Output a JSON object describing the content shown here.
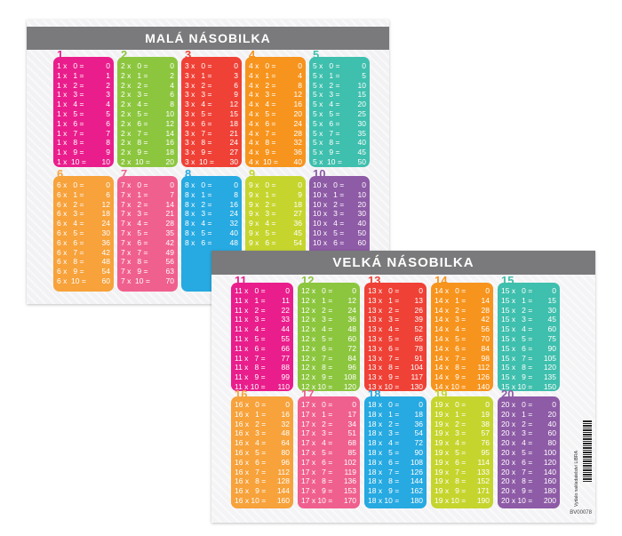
{
  "colors": [
    "#e91e8c",
    "#8cc63f",
    "#ef4136",
    "#f7941d",
    "#3fbfad",
    "#f7a23b",
    "#f0608e",
    "#27a9e1",
    "#c6d52e",
    "#8e5ba6"
  ],
  "small": {
    "title": "MALÁ NÁSOBILKA",
    "tables": [
      {
        "n": "1",
        "rows": [
          [
            "1 x   0 =",
            "0"
          ],
          [
            "1 x   1 =",
            "1"
          ],
          [
            "1 x   2 =",
            "2"
          ],
          [
            "1 x   3 =",
            "3"
          ],
          [
            "1 x   4 =",
            "4"
          ],
          [
            "1 x   5 =",
            "5"
          ],
          [
            "1 x   6 =",
            "6"
          ],
          [
            "1 x   7 =",
            "7"
          ],
          [
            "1 x   8 =",
            "8"
          ],
          [
            "1 x   9 =",
            "9"
          ],
          [
            "1 x  10 =",
            "10"
          ]
        ]
      },
      {
        "n": "2",
        "rows": [
          [
            "2 x   0 =",
            "0"
          ],
          [
            "2 x   1 =",
            "2"
          ],
          [
            "2 x   2 =",
            "4"
          ],
          [
            "2 x   3 =",
            "6"
          ],
          [
            "2 x   4 =",
            "8"
          ],
          [
            "2 x   5 =",
            "10"
          ],
          [
            "2 x   6 =",
            "12"
          ],
          [
            "2 x   7 =",
            "14"
          ],
          [
            "2 x   8 =",
            "16"
          ],
          [
            "2 x   9 =",
            "18"
          ],
          [
            "2 x  10 =",
            "20"
          ]
        ]
      },
      {
        "n": "3",
        "rows": [
          [
            "3 x   0 =",
            "0"
          ],
          [
            "3 x   1 =",
            "3"
          ],
          [
            "3 x   2 =",
            "6"
          ],
          [
            "3 x   3 =",
            "9"
          ],
          [
            "3 x   4 =",
            "12"
          ],
          [
            "3 x   5 =",
            "15"
          ],
          [
            "3 x   6 =",
            "18"
          ],
          [
            "3 x   7 =",
            "21"
          ],
          [
            "3 x   8 =",
            "24"
          ],
          [
            "3 x   9 =",
            "27"
          ],
          [
            "3 x  10 =",
            "30"
          ]
        ]
      },
      {
        "n": "4",
        "rows": [
          [
            "4 x   0 =",
            "0"
          ],
          [
            "4 x   1 =",
            "4"
          ],
          [
            "4 x   2 =",
            "8"
          ],
          [
            "4 x   3 =",
            "12"
          ],
          [
            "4 x   4 =",
            "16"
          ],
          [
            "4 x   5 =",
            "20"
          ],
          [
            "4 x   6 =",
            "24"
          ],
          [
            "4 x   7 =",
            "28"
          ],
          [
            "4 x   8 =",
            "32"
          ],
          [
            "4 x   9 =",
            "36"
          ],
          [
            "4 x  10 =",
            "40"
          ]
        ]
      },
      {
        "n": "5",
        "rows": [
          [
            "5 x   0 =",
            "0"
          ],
          [
            "5 x   1 =",
            "5"
          ],
          [
            "5 x   2 =",
            "10"
          ],
          [
            "5 x   3 =",
            "15"
          ],
          [
            "5 x   4 =",
            "20"
          ],
          [
            "5 x   5 =",
            "25"
          ],
          [
            "5 x   6 =",
            "30"
          ],
          [
            "5 x   7 =",
            "35"
          ],
          [
            "5 x   8 =",
            "40"
          ],
          [
            "5 x   9 =",
            "45"
          ],
          [
            "5 x  10 =",
            "50"
          ]
        ]
      },
      {
        "n": "6",
        "rows": [
          [
            "6 x   0 =",
            "0"
          ],
          [
            "6 x   1 =",
            "6"
          ],
          [
            "6 x   2 =",
            "12"
          ],
          [
            "6 x   3 =",
            "18"
          ],
          [
            "6 x   4 =",
            "24"
          ],
          [
            "6 x   5 =",
            "30"
          ],
          [
            "6 x   6 =",
            "36"
          ],
          [
            "6 x   7 =",
            "42"
          ],
          [
            "6 x   8 =",
            "48"
          ],
          [
            "6 x   9 =",
            "54"
          ],
          [
            "6 x  10 =",
            "60"
          ]
        ]
      },
      {
        "n": "7",
        "rows": [
          [
            "7 x   0 =",
            "0"
          ],
          [
            "7 x   1 =",
            "7"
          ],
          [
            "7 x   2 =",
            "14"
          ],
          [
            "7 x   3 =",
            "21"
          ],
          [
            "7 x   4 =",
            "28"
          ],
          [
            "7 x   5 =",
            "35"
          ],
          [
            "7 x   6 =",
            "42"
          ],
          [
            "7 x   7 =",
            "49"
          ],
          [
            "7 x   8 =",
            "56"
          ],
          [
            "7 x   9 =",
            "63"
          ],
          [
            "7 x  10 =",
            "70"
          ]
        ]
      },
      {
        "n": "8",
        "rows": [
          [
            "8 x   0 =",
            "0"
          ],
          [
            "8 x   1 =",
            "8"
          ],
          [
            "8 x   2 =",
            "16"
          ],
          [
            "8 x   3 =",
            "24"
          ],
          [
            "8 x   4 =",
            "32"
          ],
          [
            "8 x   5 =",
            "40"
          ],
          [
            "8 x   6 =",
            "48"
          ]
        ]
      },
      {
        "n": "9",
        "rows": [
          [
            "9 x   0 =",
            "0"
          ],
          [
            "9 x   1 =",
            "9"
          ],
          [
            "9 x   2 =",
            "18"
          ],
          [
            "9 x   3 =",
            "27"
          ],
          [
            "9 x   4 =",
            "36"
          ],
          [
            "9 x   5 =",
            "45"
          ],
          [
            "9 x   6 =",
            "54"
          ]
        ]
      },
      {
        "n": "10",
        "rows": [
          [
            "10 x   0 =",
            "0"
          ],
          [
            "10 x   1 =",
            "10"
          ],
          [
            "10 x   2 =",
            "20"
          ],
          [
            "10 x   3 =",
            "30"
          ],
          [
            "10 x   4 =",
            "40"
          ],
          [
            "10 x   5 =",
            "50"
          ],
          [
            "10 x   6 =",
            "60"
          ]
        ]
      }
    ]
  },
  "large": {
    "title": "VELKÁ NÁSOBILKA",
    "tables": [
      {
        "n": "11",
        "rows": [
          [
            "11 x   0 =",
            "0"
          ],
          [
            "11 x   1 =",
            "11"
          ],
          [
            "11 x   2 =",
            "22"
          ],
          [
            "11 x   3 =",
            "33"
          ],
          [
            "11 x   4 =",
            "44"
          ],
          [
            "11 x   5 =",
            "55"
          ],
          [
            "11 x   6 =",
            "66"
          ],
          [
            "11 x   7 =",
            "77"
          ],
          [
            "11 x   8 =",
            "88"
          ],
          [
            "11 x   9 =",
            "99"
          ],
          [
            "11 x 10 =",
            "110"
          ]
        ]
      },
      {
        "n": "12",
        "rows": [
          [
            "12 x   0 =",
            "0"
          ],
          [
            "12 x   1 =",
            "12"
          ],
          [
            "12 x   2 =",
            "24"
          ],
          [
            "12 x   3 =",
            "36"
          ],
          [
            "12 x   4 =",
            "48"
          ],
          [
            "12 x   5 =",
            "60"
          ],
          [
            "12 x   6 =",
            "72"
          ],
          [
            "12 x   7 =",
            "84"
          ],
          [
            "12 x   8 =",
            "96"
          ],
          [
            "12 x   9 =",
            "108"
          ],
          [
            "12 x 10 =",
            "120"
          ]
        ]
      },
      {
        "n": "13",
        "rows": [
          [
            "13 x   0 =",
            "0"
          ],
          [
            "13 x   1 =",
            "13"
          ],
          [
            "13 x   2 =",
            "26"
          ],
          [
            "13 x   3 =",
            "39"
          ],
          [
            "13 x   4 =",
            "52"
          ],
          [
            "13 x   5 =",
            "65"
          ],
          [
            "13 x   6 =",
            "78"
          ],
          [
            "13 x   7 =",
            "91"
          ],
          [
            "13 x   8 =",
            "104"
          ],
          [
            "13 x   9 =",
            "117"
          ],
          [
            "13 x 10 =",
            "130"
          ]
        ]
      },
      {
        "n": "14",
        "rows": [
          [
            "14 x   0 =",
            "0"
          ],
          [
            "14 x   1 =",
            "14"
          ],
          [
            "14 x   2 =",
            "28"
          ],
          [
            "14 x   3 =",
            "42"
          ],
          [
            "14 x   4 =",
            "56"
          ],
          [
            "14 x   5 =",
            "70"
          ],
          [
            "14 x   6 =",
            "84"
          ],
          [
            "14 x   7 =",
            "98"
          ],
          [
            "14 x   8 =",
            "112"
          ],
          [
            "14 x   9 =",
            "126"
          ],
          [
            "14 x 10 =",
            "140"
          ]
        ]
      },
      {
        "n": "15",
        "rows": [
          [
            "15 x   0 =",
            "0"
          ],
          [
            "15 x   1 =",
            "15"
          ],
          [
            "15 x   2 =",
            "30"
          ],
          [
            "15 x   3 =",
            "45"
          ],
          [
            "15 x   4 =",
            "60"
          ],
          [
            "15 x   5 =",
            "75"
          ],
          [
            "15 x   6 =",
            "90"
          ],
          [
            "15 x   7 =",
            "105"
          ],
          [
            "15 x   8 =",
            "120"
          ],
          [
            "15 x   9 =",
            "135"
          ],
          [
            "15 x 10 =",
            "150"
          ]
        ]
      },
      {
        "n": "16",
        "rows": [
          [
            "16 x   0 =",
            "0"
          ],
          [
            "16 x   1 =",
            "16"
          ],
          [
            "16 x   2 =",
            "32"
          ],
          [
            "16 x   3 =",
            "48"
          ],
          [
            "16 x   4 =",
            "64"
          ],
          [
            "16 x   5 =",
            "80"
          ],
          [
            "16 x   6 =",
            "96"
          ],
          [
            "16 x   7 =",
            "112"
          ],
          [
            "16 x   8 =",
            "128"
          ],
          [
            "16 x   9 =",
            "144"
          ],
          [
            "16 x 10 =",
            "160"
          ]
        ]
      },
      {
        "n": "17",
        "rows": [
          [
            "17 x   0 =",
            "0"
          ],
          [
            "17 x   1 =",
            "17"
          ],
          [
            "17 x   2 =",
            "34"
          ],
          [
            "17 x   3 =",
            "51"
          ],
          [
            "17 x   4 =",
            "68"
          ],
          [
            "17 x   5 =",
            "85"
          ],
          [
            "17 x   6 =",
            "102"
          ],
          [
            "17 x   7 =",
            "119"
          ],
          [
            "17 x   8 =",
            "136"
          ],
          [
            "17 x   9 =",
            "153"
          ],
          [
            "17 x 10 =",
            "170"
          ]
        ]
      },
      {
        "n": "18",
        "rows": [
          [
            "18 x   0 =",
            "0"
          ],
          [
            "18 x   1 =",
            "18"
          ],
          [
            "18 x   2 =",
            "36"
          ],
          [
            "18 x   3 =",
            "54"
          ],
          [
            "18 x   4 =",
            "72"
          ],
          [
            "18 x   5 =",
            "90"
          ],
          [
            "18 x   6 =",
            "108"
          ],
          [
            "18 x   7 =",
            "126"
          ],
          [
            "18 x   8 =",
            "144"
          ],
          [
            "18 x   9 =",
            "162"
          ],
          [
            "18 x 10 =",
            "180"
          ]
        ]
      },
      {
        "n": "19",
        "rows": [
          [
            "19 x   0 =",
            "0"
          ],
          [
            "19 x   1 =",
            "19"
          ],
          [
            "19 x   2 =",
            "38"
          ],
          [
            "19 x   3 =",
            "57"
          ],
          [
            "19 x   4 =",
            "76"
          ],
          [
            "19 x   5 =",
            "95"
          ],
          [
            "19 x   6 =",
            "114"
          ],
          [
            "19 x   7 =",
            "133"
          ],
          [
            "19 x   8 =",
            "152"
          ],
          [
            "19 x   9 =",
            "171"
          ],
          [
            "19 x 10 =",
            "190"
          ]
        ]
      },
      {
        "n": "20",
        "rows": [
          [
            "20 x   0 =",
            "0"
          ],
          [
            "20 x   1 =",
            "20"
          ],
          [
            "20 x   2 =",
            "40"
          ],
          [
            "20 x   3 =",
            "60"
          ],
          [
            "20 x   4 =",
            "80"
          ],
          [
            "20 x   5 =",
            "100"
          ],
          [
            "20 x   6 =",
            "120"
          ],
          [
            "20 x   7 =",
            "140"
          ],
          [
            "20 x   8 =",
            "160"
          ],
          [
            "20 x   9 =",
            "180"
          ],
          [
            "20 x 10 =",
            "200"
          ]
        ]
      }
    ],
    "publisher_text": "Vydalo nakladatelství LIBRA",
    "code": "BV00078"
  }
}
